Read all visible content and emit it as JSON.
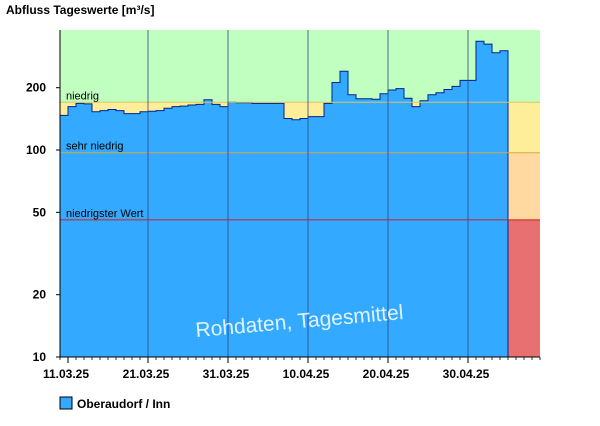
{
  "chart_data": {
    "type": "area",
    "title": "Abfluss Tageswerte [m³/s]",
    "y_scale": "log",
    "ylim": [
      10,
      380
    ],
    "y_ticks": [
      {
        "value": 10,
        "label": "10"
      },
      {
        "value": 20,
        "label": "20"
      },
      {
        "value": 50,
        "label": "50"
      },
      {
        "value": 100,
        "label": "100"
      },
      {
        "value": 200,
        "label": "200"
      }
    ],
    "x_ticks": [
      "11.03.25",
      "21.03.25",
      "31.03.25",
      "10.04.25",
      "20.04.25",
      "30.04.25"
    ],
    "x_start": "2025-03-10",
    "x_days_total": 60,
    "thresholds": [
      {
        "name": "niedrig",
        "value": 170,
        "color": "#e8d87a"
      },
      {
        "name": "sehr niedrig",
        "value": 97,
        "color": "#e0b060"
      },
      {
        "name": "niedrigster Wert",
        "value": 46,
        "color": "#cc3333"
      }
    ],
    "zone_colors": {
      "above_niedrig": "#c0ffc0",
      "niedrig_to_sehr_niedrig": "#ffee99",
      "sehr_niedrig_to_niedrigster": "#ffd9a0",
      "below_niedrigster": "#e87070"
    },
    "series": [
      {
        "name": "Oberaudorf / Inn",
        "color": "#33aaff",
        "values": [
          147,
          162,
          168,
          167,
          153,
          155,
          157,
          155,
          150,
          150,
          153,
          154,
          155,
          159,
          162,
          163,
          165,
          166,
          175,
          166,
          162,
          170,
          169,
          169,
          168,
          168,
          168,
          168,
          142,
          140,
          142,
          145,
          145,
          168,
          212,
          240,
          185,
          177,
          177,
          176,
          187,
          195,
          198,
          178,
          162,
          173,
          185,
          189,
          196,
          203,
          217,
          217,
          335,
          325,
          295,
          302
        ]
      }
    ],
    "legend": [
      {
        "label": "Oberaudorf / Inn",
        "color": "#33aaff"
      }
    ],
    "annotation": "Rohdaten, Tagesmittel"
  }
}
